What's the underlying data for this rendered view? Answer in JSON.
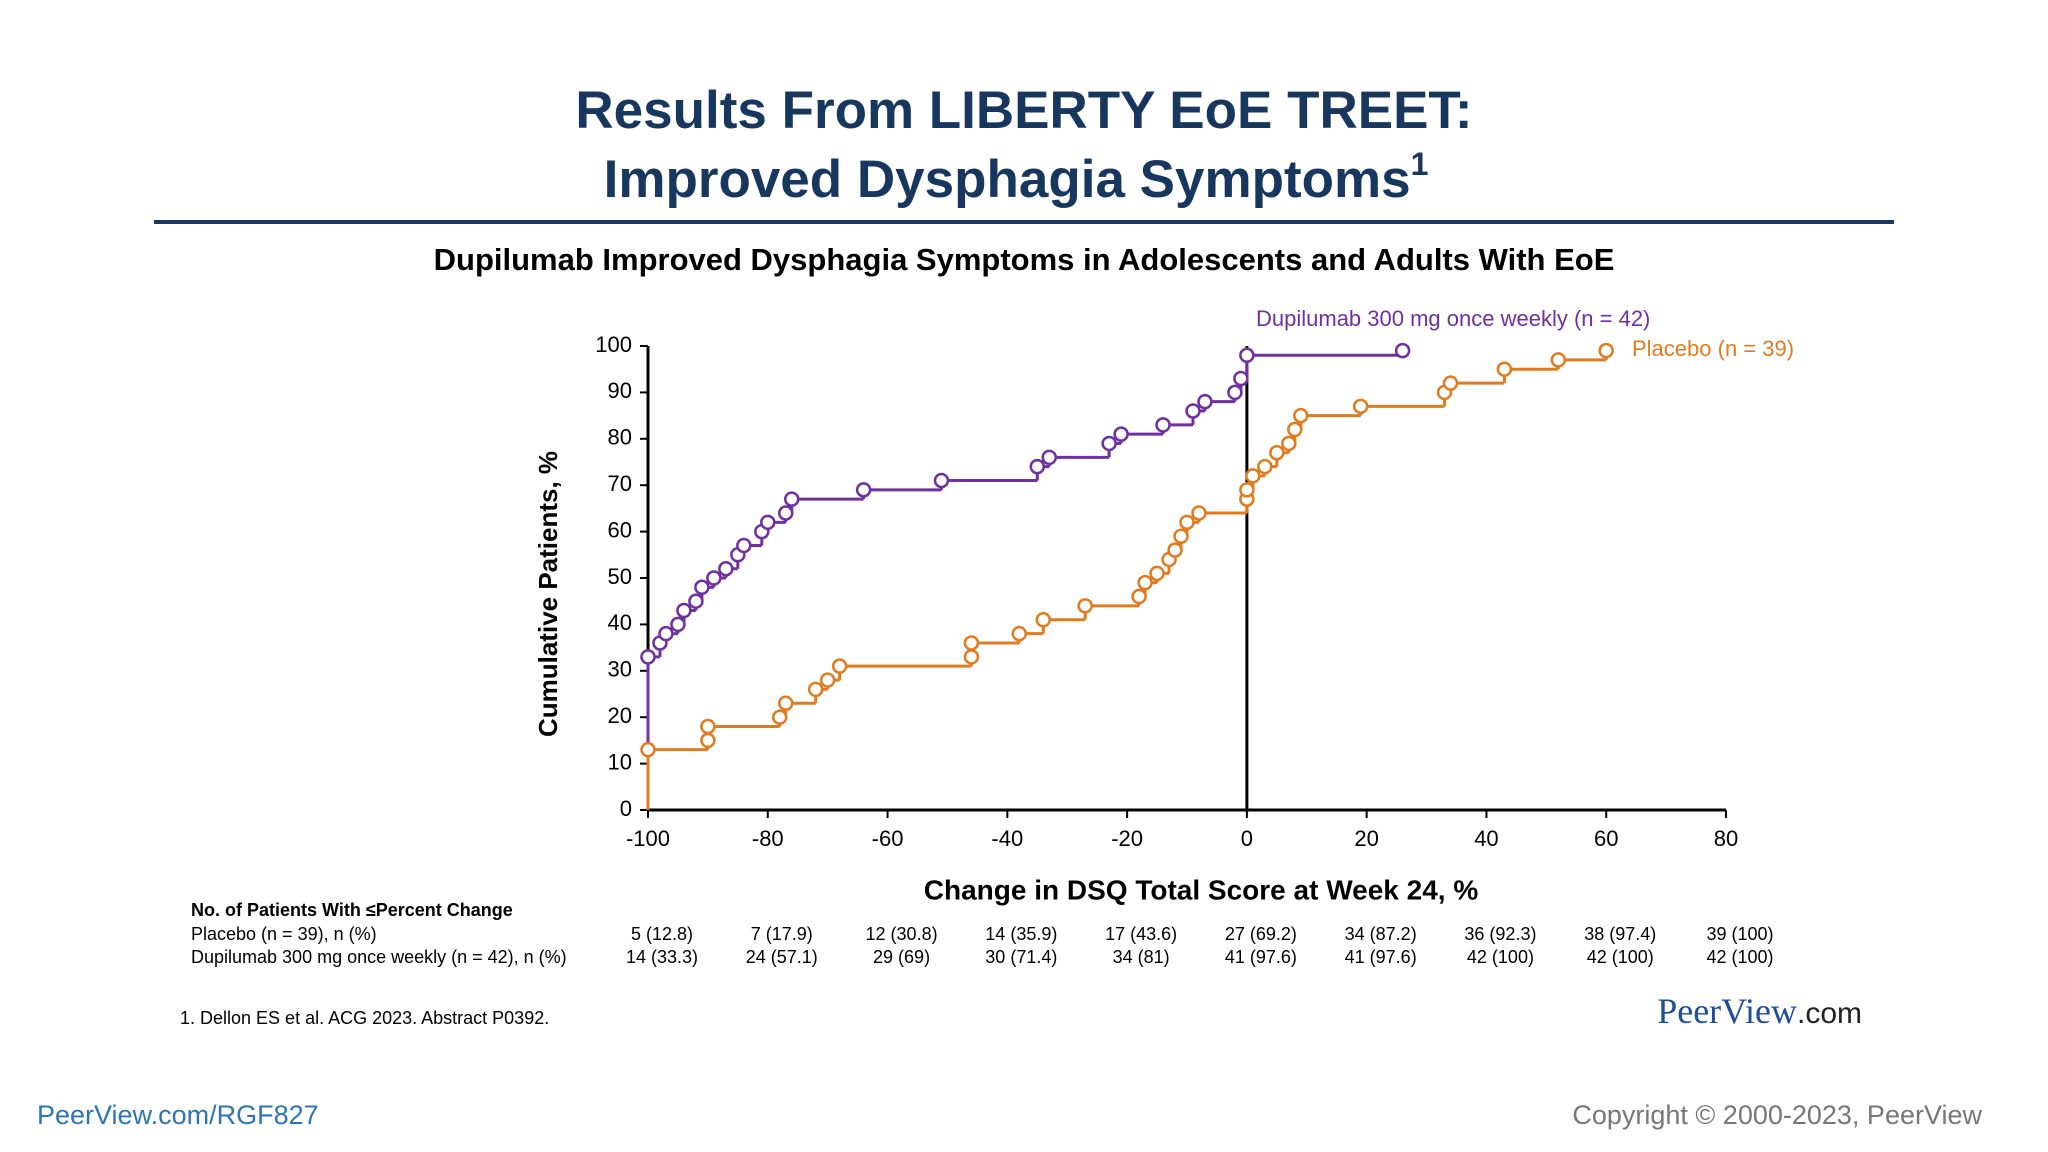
{
  "header": {
    "title_line1": "Results From LIBERTY EoE TREET:",
    "title_line2": "Improved Dysphagia Symptoms",
    "title_sup": "1"
  },
  "chart_data": {
    "type": "step",
    "title": "Dupilumab Improved Dysphagia Symptoms in Adolescents and Adults With EoE",
    "x_label": "Change in DSQ Total Score at Week 24, %",
    "y_label": "Cumulative Patients, %",
    "xlim": [
      -100,
      80
    ],
    "xticks": [
      -100,
      -80,
      -60,
      -40,
      -20,
      0,
      20,
      40,
      60,
      80
    ],
    "ylim": [
      0,
      100
    ],
    "yticks": [
      0,
      10,
      20,
      30,
      40,
      50,
      60,
      70,
      80,
      90,
      100
    ],
    "series": [
      {
        "name": "Dupilumab 300 mg once weekly (n = 42)",
        "color": "#7030a0",
        "x": [
          -100,
          -98,
          -97,
          -95,
          -94,
          -92,
          -91,
          -89,
          -87,
          -85,
          -84,
          -81,
          -80,
          -77,
          -76,
          -64,
          -51,
          -35,
          -33,
          -23,
          -21,
          -14,
          -9,
          -7,
          -2,
          -1,
          0,
          26
        ],
        "values": [
          33,
          36,
          38,
          40,
          43,
          45,
          48,
          50,
          52,
          55,
          57,
          60,
          62,
          64,
          67,
          69,
          71,
          74,
          76,
          79,
          81,
          83,
          86,
          88,
          90,
          93,
          98,
          99
        ]
      },
      {
        "name": "Placebo (n = 39)",
        "color": "#e07b20",
        "x": [
          -100,
          -90,
          -90,
          -78,
          -77,
          -72,
          -70,
          -68,
          -46,
          -46,
          -38,
          -34,
          -27,
          -18,
          -17,
          -15,
          -13,
          -12,
          -11,
          -10,
          -8,
          0,
          0,
          1,
          3,
          5,
          7,
          8,
          9,
          19,
          33,
          34,
          43,
          52,
          60
        ],
        "values": [
          13,
          15,
          18,
          20,
          23,
          26,
          28,
          31,
          33,
          36,
          38,
          41,
          44,
          46,
          49,
          51,
          54,
          56,
          59,
          62,
          64,
          67,
          69,
          72,
          74,
          77,
          79,
          82,
          85,
          87,
          90,
          92,
          95,
          97,
          99
        ]
      }
    ]
  },
  "table": {
    "header": "No. of Patients With  ≤Percent Change",
    "rows": [
      {
        "label": "Placebo (n = 39), n (%)",
        "cells": [
          "5 (12.8)",
          "7 (17.9)",
          "12 (30.8)",
          "14 (35.9)",
          "17 (43.6)",
          "27 (69.2)",
          "34 (87.2)",
          "36 (92.3)",
          "38 (97.4)",
          "39 (100)"
        ]
      },
      {
        "label": "Dupilumab 300 mg once weekly (n = 42), n (%)",
        "cells": [
          "14 (33.3)",
          "24 (57.1)",
          "29 (69)",
          "30 (71.4)",
          "34 (81)",
          "41 (97.6)",
          "41 (97.6)",
          "42 (100)",
          "42 (100)",
          "42 (100)"
        ]
      }
    ]
  },
  "footnote": "1. Dellon ES et al. ACG 2023. Abstract P0392.",
  "logo": {
    "main": "PeerView",
    "suffix": ".com"
  },
  "footer": {
    "link": "PeerView.com/RGF827",
    "copyright": "Copyright © 2000-2023, PeerView"
  }
}
